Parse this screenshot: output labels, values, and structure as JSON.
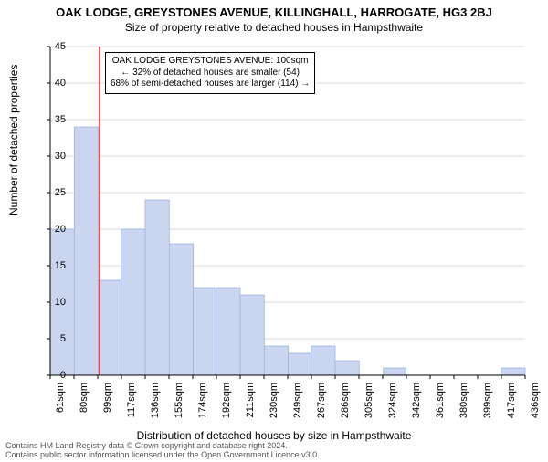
{
  "title_main": "OAK LODGE, GREYSTONES AVENUE, KILLINGHALL, HARROGATE, HG3 2BJ",
  "title_sub": "Size of property relative to detached houses in Hampsthwaite",
  "y_label": "Number of detached properties",
  "x_label": "Distribution of detached houses by size in Hampsthwaite",
  "footer_l1": "Contains HM Land Registry data © Crown copyright and database right 2024.",
  "footer_l2": "Contains public sector information licensed under the Open Government Licence v3.0.",
  "annotation": {
    "l1": "OAK LODGE GREYSTONES AVENUE: 100sqm",
    "l2": "← 32% of detached houses are smaller (54)",
    "l3": "68% of semi-detached houses are larger (114) →"
  },
  "chart": {
    "type": "histogram",
    "background_color": "#ffffff",
    "bar_fill": "#cad5ef",
    "bar_stroke": "#9fb2de",
    "grid_color": "#d9d9d9",
    "axis_color": "#000000",
    "marker_line_color": "#ff0000",
    "marker_x": 100,
    "ylim": [
      0,
      45
    ],
    "ytick_step": 5,
    "x_tick_labels": [
      "61sqm",
      "80sqm",
      "99sqm",
      "117sqm",
      "136sqm",
      "155sqm",
      "174sqm",
      "192sqm",
      "211sqm",
      "230sqm",
      "249sqm",
      "267sqm",
      "286sqm",
      "305sqm",
      "324sqm",
      "342sqm",
      "361sqm",
      "380sqm",
      "399sqm",
      "417sqm",
      "436sqm"
    ],
    "x_min": 61,
    "x_max": 436,
    "bars": [
      {
        "x0": 61,
        "x1": 80,
        "v": 20
      },
      {
        "x0": 80,
        "x1": 99,
        "v": 34
      },
      {
        "x0": 99,
        "x1": 117,
        "v": 13
      },
      {
        "x0": 117,
        "x1": 136,
        "v": 20
      },
      {
        "x0": 136,
        "x1": 155,
        "v": 24
      },
      {
        "x0": 155,
        "x1": 174,
        "v": 18
      },
      {
        "x0": 174,
        "x1": 192,
        "v": 12
      },
      {
        "x0": 192,
        "x1": 211,
        "v": 12
      },
      {
        "x0": 211,
        "x1": 230,
        "v": 11
      },
      {
        "x0": 230,
        "x1": 249,
        "v": 4
      },
      {
        "x0": 249,
        "x1": 267,
        "v": 3
      },
      {
        "x0": 267,
        "x1": 286,
        "v": 4
      },
      {
        "x0": 286,
        "x1": 305,
        "v": 2
      },
      {
        "x0": 305,
        "x1": 324,
        "v": 0
      },
      {
        "x0": 324,
        "x1": 342,
        "v": 1
      },
      {
        "x0": 342,
        "x1": 361,
        "v": 0
      },
      {
        "x0": 361,
        "x1": 380,
        "v": 0
      },
      {
        "x0": 380,
        "x1": 399,
        "v": 0
      },
      {
        "x0": 399,
        "x1": 417,
        "v": 0
      },
      {
        "x0": 417,
        "x1": 436,
        "v": 1
      }
    ]
  }
}
